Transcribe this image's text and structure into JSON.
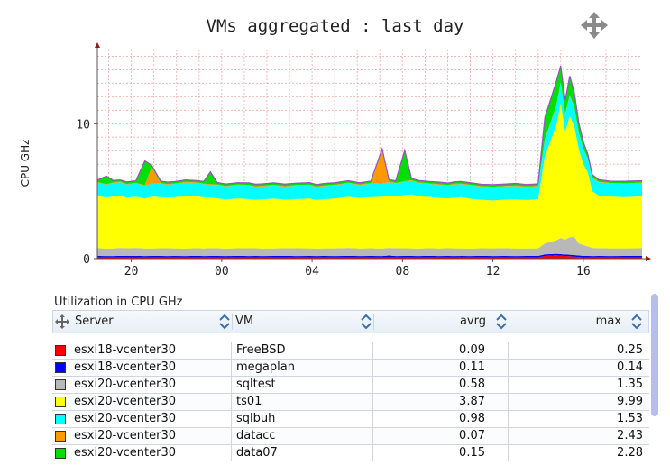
{
  "chart_data": {
    "type": "area",
    "title": "VMs aggregated : last day",
    "ylabel": "CPU GHz",
    "xlabel": "",
    "x_tick_labels": [
      "20",
      "00",
      "04",
      "08",
      "12",
      "16"
    ],
    "x_ticks_hours": [
      20,
      24,
      28,
      32,
      36,
      40
    ],
    "xlim_hours": [
      18.5,
      42.6
    ],
    "y_tick_labels": [
      "0",
      "10"
    ],
    "ylim": [
      0,
      15.5
    ],
    "grid": true,
    "x": [
      18.5,
      18.9,
      19.2,
      19.5,
      19.8,
      20.2,
      20.6,
      20.9,
      21.3,
      21.6,
      21.9,
      22.4,
      22.9,
      23.2,
      23.5,
      23.8,
      24.2,
      24.7,
      25.2,
      25.5,
      25.8,
      26.3,
      26.8,
      27.3,
      27.9,
      28.2,
      28.5,
      29.0,
      29.6,
      30.1,
      30.6,
      31.1,
      31.4,
      31.7,
      32.1,
      32.4,
      32.7,
      33.2,
      33.6,
      34.0,
      34.3,
      34.6,
      35.0,
      35.5,
      36.0,
      36.5,
      37.0,
      37.5,
      38.0,
      38.3,
      38.8,
      39.0,
      39.2,
      39.4,
      39.6,
      39.8,
      40.0,
      40.2,
      40.4,
      40.7,
      41.2,
      41.8,
      42.6
    ],
    "series": [
      {
        "name": "FreeBSD",
        "color": "#ff0000",
        "values": [
          0.09,
          0.08,
          0.08,
          0.09,
          0.09,
          0.1,
          0.08,
          0.08,
          0.09,
          0.08,
          0.09,
          0.08,
          0.09,
          0.08,
          0.09,
          0.09,
          0.08,
          0.09,
          0.08,
          0.09,
          0.08,
          0.09,
          0.09,
          0.08,
          0.09,
          0.08,
          0.09,
          0.08,
          0.09,
          0.08,
          0.09,
          0.08,
          0.09,
          0.08,
          0.09,
          0.09,
          0.08,
          0.09,
          0.08,
          0.09,
          0.08,
          0.09,
          0.08,
          0.09,
          0.08,
          0.09,
          0.08,
          0.09,
          0.09,
          0.2,
          0.25,
          0.22,
          0.2,
          0.18,
          0.15,
          0.12,
          0.1,
          0.09,
          0.08,
          0.09,
          0.08,
          0.09,
          0.09
        ]
      },
      {
        "name": "megaplan",
        "color": "#0000ff",
        "values": [
          0.11,
          0.11,
          0.11,
          0.12,
          0.11,
          0.11,
          0.11,
          0.12,
          0.11,
          0.11,
          0.11,
          0.11,
          0.12,
          0.11,
          0.11,
          0.11,
          0.11,
          0.12,
          0.11,
          0.11,
          0.11,
          0.11,
          0.12,
          0.11,
          0.11,
          0.11,
          0.11,
          0.11,
          0.12,
          0.11,
          0.11,
          0.11,
          0.14,
          0.11,
          0.11,
          0.11,
          0.11,
          0.12,
          0.11,
          0.11,
          0.11,
          0.11,
          0.11,
          0.12,
          0.11,
          0.11,
          0.11,
          0.11,
          0.11,
          0.12,
          0.11,
          0.11,
          0.11,
          0.11,
          0.12,
          0.11,
          0.11,
          0.11,
          0.11,
          0.11,
          0.11,
          0.11,
          0.11
        ]
      },
      {
        "name": "sqltest",
        "color": "#b8b8b8",
        "values": [
          0.58,
          0.55,
          0.56,
          0.58,
          0.57,
          0.58,
          0.56,
          0.55,
          0.57,
          0.58,
          0.56,
          0.55,
          0.57,
          0.56,
          0.58,
          0.57,
          0.55,
          0.56,
          0.58,
          0.57,
          0.56,
          0.55,
          0.57,
          0.58,
          0.56,
          0.55,
          0.56,
          0.57,
          0.58,
          0.56,
          0.57,
          0.55,
          0.56,
          0.58,
          0.57,
          0.56,
          0.55,
          0.57,
          0.56,
          0.58,
          0.57,
          0.56,
          0.55,
          0.56,
          0.57,
          0.58,
          0.56,
          0.55,
          0.56,
          0.8,
          1.0,
          1.2,
          1.1,
          1.3,
          1.35,
          0.9,
          0.8,
          0.7,
          0.6,
          0.58,
          0.57,
          0.56,
          0.57
        ]
      },
      {
        "name": "ts01",
        "color": "#ffff00",
        "values": [
          3.87,
          3.8,
          3.85,
          3.9,
          3.75,
          3.8,
          3.7,
          3.85,
          3.8,
          3.75,
          3.8,
          3.9,
          3.85,
          3.8,
          3.75,
          3.7,
          3.65,
          3.7,
          3.65,
          3.6,
          3.65,
          3.7,
          3.6,
          3.65,
          3.7,
          3.6,
          3.65,
          3.7,
          3.8,
          3.75,
          3.8,
          3.85,
          3.9,
          3.85,
          3.95,
          4.0,
          3.9,
          3.8,
          3.75,
          3.7,
          3.75,
          3.8,
          3.7,
          3.6,
          3.55,
          3.6,
          3.65,
          3.6,
          3.65,
          6.5,
          8.5,
          9.99,
          8.0,
          9.0,
          8.2,
          7.0,
          6.0,
          5.5,
          4.2,
          3.9,
          3.85,
          3.8,
          3.85
        ]
      },
      {
        "name": "sqlbuh",
        "color": "#00ffff",
        "values": [
          0.98,
          0.95,
          1.0,
          0.98,
          0.97,
          1.0,
          0.95,
          0.98,
          0.99,
          0.96,
          0.98,
          1.0,
          0.97,
          0.98,
          0.95,
          0.99,
          0.96,
          0.98,
          1.0,
          0.97,
          0.95,
          0.98,
          0.96,
          1.0,
          0.98,
          0.97,
          0.96,
          0.98,
          1.0,
          0.95,
          0.98,
          0.99,
          0.97,
          0.96,
          0.98,
          1.0,
          0.97,
          0.96,
          0.98,
          0.95,
          0.99,
          0.97,
          1.0,
          0.96,
          0.98,
          0.97,
          0.98,
          0.96,
          0.95,
          1.2,
          1.4,
          1.53,
          1.3,
          1.5,
          1.4,
          1.2,
          1.1,
          1.0,
          0.98,
          0.97,
          0.96,
          0.98,
          0.97
        ]
      },
      {
        "name": "datacc",
        "color": "#ff9900",
        "values": [
          0.05,
          0.04,
          0.05,
          0.05,
          0.05,
          0.04,
          0.05,
          1.2,
          0.05,
          0.05,
          0.04,
          0.05,
          0.05,
          0.04,
          0.05,
          0.05,
          0.04,
          0.05,
          0.05,
          0.04,
          0.05,
          0.05,
          0.04,
          0.05,
          0.05,
          0.04,
          0.05,
          0.05,
          0.04,
          0.05,
          0.05,
          2.43,
          0.05,
          0.04,
          0.05,
          0.05,
          0.04,
          0.05,
          0.05,
          0.04,
          0.05,
          0.05,
          0.04,
          0.05,
          0.05,
          0.04,
          0.05,
          0.05,
          0.04,
          0.05,
          0.05,
          0.04,
          0.05,
          0.05,
          0.04,
          0.05,
          0.05,
          0.04,
          0.05,
          0.05,
          0.04,
          0.05,
          0.05
        ]
      },
      {
        "name": "data07",
        "color": "#00e000",
        "values": [
          0.15,
          0.6,
          0.15,
          0.12,
          0.15,
          0.14,
          1.8,
          0.15,
          0.14,
          0.15,
          0.13,
          0.15,
          0.14,
          0.15,
          0.9,
          0.14,
          0.15,
          0.13,
          0.15,
          0.14,
          0.15,
          0.14,
          0.15,
          0.13,
          0.15,
          0.14,
          0.15,
          0.14,
          0.15,
          0.13,
          0.15,
          0.14,
          0.15,
          0.15,
          2.28,
          0.14,
          0.15,
          0.13,
          0.15,
          0.14,
          0.15,
          0.14,
          0.15,
          0.13,
          0.15,
          0.14,
          0.15,
          0.14,
          0.15,
          1.6,
          1.8,
          1.2,
          1.0,
          1.4,
          1.1,
          0.7,
          0.5,
          0.3,
          0.2,
          0.15,
          0.14,
          0.15,
          0.14
        ]
      }
    ]
  },
  "table": {
    "caption": "Utilization in CPU GHz",
    "headers": {
      "server": "Server",
      "vm": "VM",
      "avrg": "avrg",
      "max": "max"
    },
    "rows": [
      {
        "color": "#ff0000",
        "server": "esxi18-vcenter30",
        "vm": "FreeBSD",
        "avrg": "0.09",
        "max": "0.25"
      },
      {
        "color": "#0000ff",
        "server": "esxi18-vcenter30",
        "vm": "megaplan",
        "avrg": "0.11",
        "max": "0.14"
      },
      {
        "color": "#b8b8b8",
        "server": "esxi20-vcenter30",
        "vm": "sqltest",
        "avrg": "0.58",
        "max": "1.35"
      },
      {
        "color": "#ffff00",
        "server": "esxi20-vcenter30",
        "vm": "ts01",
        "avrg": "3.87",
        "max": "9.99"
      },
      {
        "color": "#00ffff",
        "server": "esxi20-vcenter30",
        "vm": "sqlbuh",
        "avrg": "0.98",
        "max": "1.53"
      },
      {
        "color": "#ff9900",
        "server": "esxi20-vcenter30",
        "vm": "datacc",
        "avrg": "0.07",
        "max": "2.43"
      },
      {
        "color": "#00e000",
        "server": "esxi20-vcenter30",
        "vm": "data07",
        "avrg": "0.15",
        "max": "2.28"
      }
    ]
  }
}
